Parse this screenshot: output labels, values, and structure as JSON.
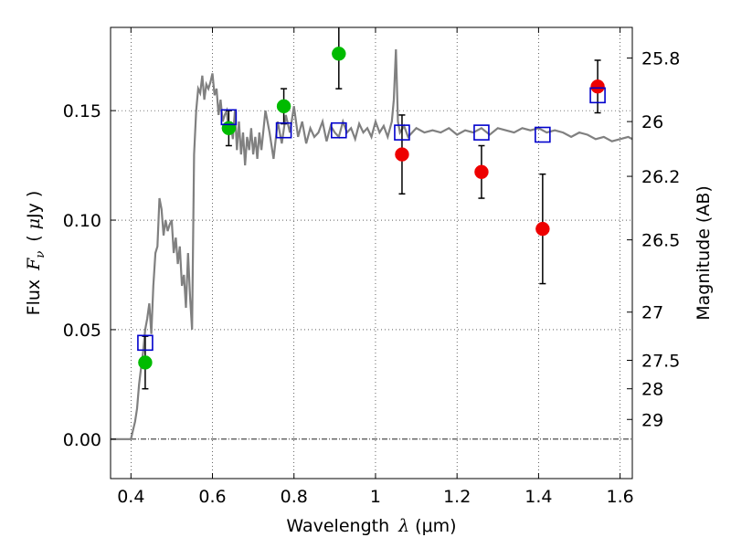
{
  "chart_data": {
    "type": "scatter",
    "xlim": [
      0.35,
      1.63
    ],
    "ylim": [
      -0.018,
      0.188
    ],
    "grid": true,
    "x_ticks": [
      0.4,
      0.6,
      0.8,
      1.0,
      1.2,
      1.4,
      1.6
    ],
    "x_tick_labels": [
      "0.4",
      "0.6",
      "0.8",
      "1",
      "1.2",
      "1.4",
      "1.6"
    ],
    "y_ticks": [
      0.0,
      0.05,
      0.1,
      0.15
    ],
    "y_tick_labels": [
      "0.00",
      "0.05",
      "0.10",
      "0.15"
    ],
    "xlabel": {
      "text": "Wavelength",
      "symbol": "λ",
      "unit": "(μm)"
    },
    "ylabel": {
      "text": "Flux",
      "symbol": "F",
      "subscript": "ν",
      "unit_open": "(",
      "unit_symbol": "μ",
      "unit": "Jy )"
    },
    "right_axis": {
      "label": "Magnitude (AB)",
      "ticks": [
        {
          "label": "25.8",
          "flux": 0.174
        },
        {
          "label": "26",
          "flux": 0.145
        },
        {
          "label": "26.2",
          "flux": 0.12
        },
        {
          "label": "26.5",
          "flux": 0.091
        },
        {
          "label": "27",
          "flux": 0.058
        },
        {
          "label": "27.5",
          "flux": 0.036
        },
        {
          "label": "28",
          "flux": 0.023
        },
        {
          "label": "29",
          "flux": 0.009
        }
      ]
    },
    "colors": {
      "spectrum": "#808080",
      "green": "#00bb00",
      "red": "#ee0000",
      "model": "#0000cc",
      "error": "#000000"
    },
    "series": [
      {
        "kind": "spectrum",
        "x": [
          0.35,
          0.4,
          0.405,
          0.41,
          0.415,
          0.42,
          0.425,
          0.43,
          0.435,
          0.44,
          0.445,
          0.45,
          0.455,
          0.46,
          0.465,
          0.47,
          0.475,
          0.48,
          0.485,
          0.49,
          0.495,
          0.5,
          0.505,
          0.51,
          0.515,
          0.52,
          0.525,
          0.53,
          0.535,
          0.54,
          0.545,
          0.55,
          0.555,
          0.56,
          0.565,
          0.57,
          0.575,
          0.58,
          0.585,
          0.59,
          0.595,
          0.6,
          0.605,
          0.61,
          0.615,
          0.62,
          0.625,
          0.63,
          0.635,
          0.64,
          0.645,
          0.65,
          0.655,
          0.66,
          0.665,
          0.67,
          0.675,
          0.68,
          0.685,
          0.69,
          0.695,
          0.7,
          0.705,
          0.71,
          0.715,
          0.72,
          0.73,
          0.74,
          0.75,
          0.76,
          0.77,
          0.78,
          0.79,
          0.8,
          0.81,
          0.82,
          0.83,
          0.84,
          0.85,
          0.86,
          0.87,
          0.88,
          0.89,
          0.9,
          0.91,
          0.92,
          0.93,
          0.94,
          0.95,
          0.96,
          0.97,
          0.98,
          0.99,
          1.0,
          1.01,
          1.02,
          1.03,
          1.04,
          1.045,
          1.05,
          1.055,
          1.06,
          1.07,
          1.08,
          1.1,
          1.12,
          1.14,
          1.16,
          1.18,
          1.2,
          1.22,
          1.24,
          1.26,
          1.28,
          1.3,
          1.32,
          1.34,
          1.36,
          1.38,
          1.4,
          1.42,
          1.44,
          1.46,
          1.48,
          1.5,
          1.52,
          1.54,
          1.56,
          1.58,
          1.6,
          1.62,
          1.63
        ],
        "y": [
          0.0,
          0.0,
          0.004,
          0.008,
          0.014,
          0.025,
          0.033,
          0.04,
          0.05,
          0.055,
          0.062,
          0.048,
          0.07,
          0.085,
          0.088,
          0.11,
          0.105,
          0.093,
          0.1,
          0.095,
          0.098,
          0.1,
          0.085,
          0.092,
          0.08,
          0.088,
          0.07,
          0.075,
          0.06,
          0.085,
          0.065,
          0.05,
          0.13,
          0.15,
          0.16,
          0.158,
          0.166,
          0.155,
          0.162,
          0.16,
          0.163,
          0.167,
          0.157,
          0.16,
          0.148,
          0.155,
          0.145,
          0.148,
          0.15,
          0.14,
          0.145,
          0.137,
          0.15,
          0.132,
          0.145,
          0.13,
          0.14,
          0.125,
          0.138,
          0.132,
          0.142,
          0.13,
          0.138,
          0.128,
          0.14,
          0.132,
          0.15,
          0.14,
          0.128,
          0.145,
          0.135,
          0.148,
          0.14,
          0.152,
          0.138,
          0.145,
          0.135,
          0.142,
          0.138,
          0.14,
          0.145,
          0.136,
          0.143,
          0.14,
          0.138,
          0.145,
          0.14,
          0.142,
          0.137,
          0.144,
          0.14,
          0.142,
          0.138,
          0.145,
          0.14,
          0.143,
          0.138,
          0.145,
          0.155,
          0.178,
          0.145,
          0.14,
          0.143,
          0.138,
          0.142,
          0.14,
          0.141,
          0.14,
          0.142,
          0.139,
          0.141,
          0.14,
          0.142,
          0.139,
          0.142,
          0.141,
          0.14,
          0.142,
          0.141,
          0.142,
          0.14,
          0.141,
          0.14,
          0.138,
          0.14,
          0.139,
          0.137,
          0.138,
          0.136,
          0.137,
          0.138,
          0.137
        ]
      },
      {
        "kind": "model",
        "x": [
          0.435,
          0.64,
          0.775,
          0.91,
          1.065,
          1.26,
          1.41,
          1.545
        ],
        "y": [
          0.044,
          0.147,
          0.141,
          0.141,
          0.14,
          0.14,
          0.139,
          0.157
        ]
      },
      {
        "kind": "green",
        "x": [
          0.435,
          0.64,
          0.775,
          0.91
        ],
        "y": [
          0.035,
          0.142,
          0.152,
          0.176
        ],
        "err": [
          0.012,
          0.008,
          0.008,
          0.016
        ]
      },
      {
        "kind": "red",
        "x": [
          1.065,
          1.26,
          1.41,
          1.545
        ],
        "y": [
          0.13,
          0.122,
          0.096,
          0.161
        ],
        "err": [
          0.018,
          0.012,
          0.025,
          0.012
        ]
      }
    ]
  }
}
